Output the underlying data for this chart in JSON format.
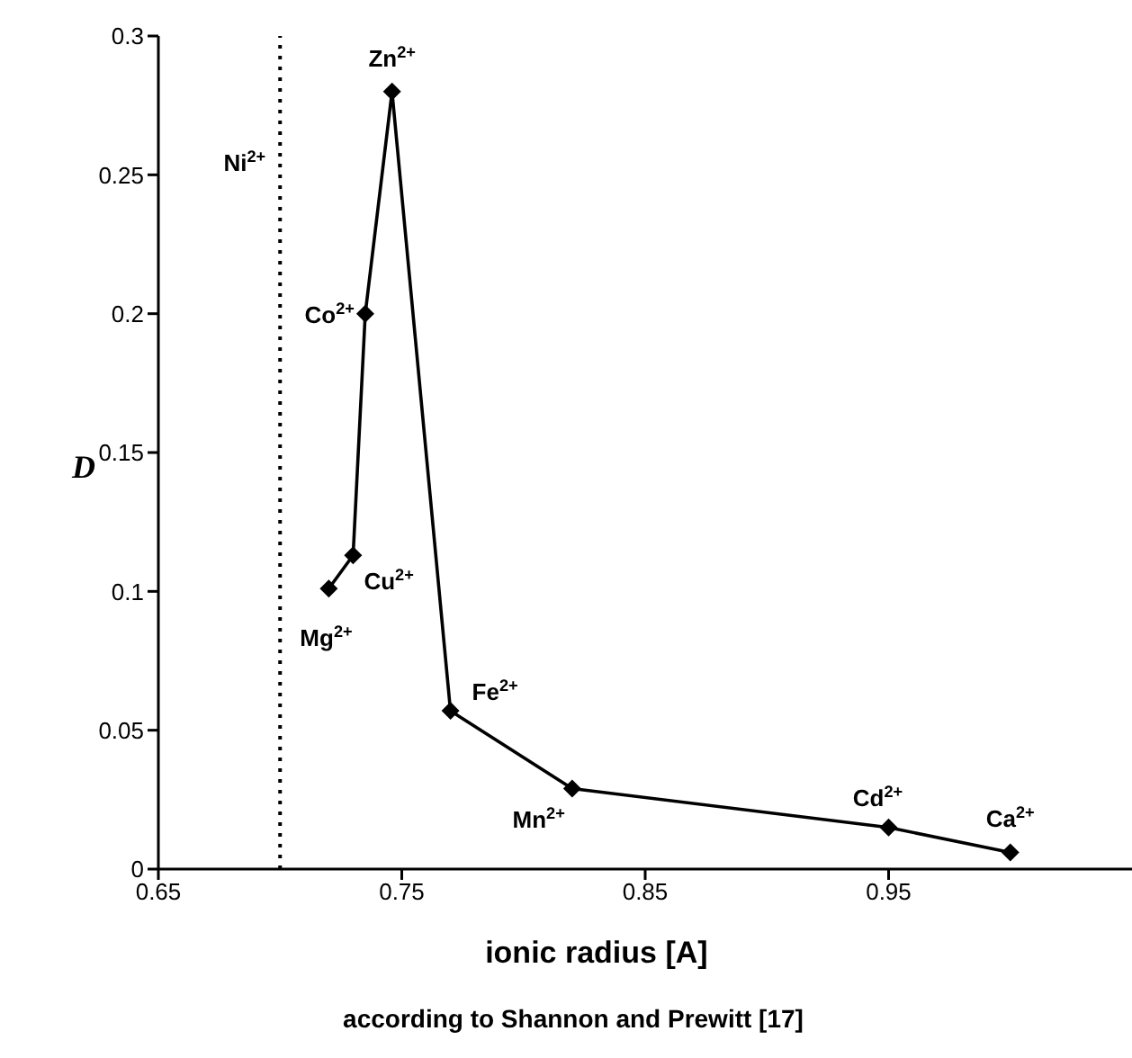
{
  "chart_data": {
    "type": "line",
    "xlabel": "ionic radius [A]",
    "ylabel": "D",
    "x": [
      0.72,
      0.73,
      0.735,
      0.746,
      0.77,
      0.82,
      0.95,
      1.0
    ],
    "series": [
      {
        "color": "#000000",
        "values": [
          0.101,
          0.113,
          0.2,
          0.28,
          0.057,
          0.029,
          0.015,
          0.006
        ]
      }
    ],
    "xlim": [
      0.65,
      1.05
    ],
    "xticks": [
      0.65,
      0.75,
      0.85,
      0.95
    ],
    "ylim": [
      0,
      0.3
    ],
    "yticks": [
      0,
      0.05,
      0.1,
      0.15,
      0.2,
      0.25,
      0.3
    ],
    "grid": false,
    "legend": false,
    "marker": "diamond",
    "line_style": "solid",
    "ref_lines": [
      {
        "axis": "x",
        "value": 0.7,
        "label": "Ni$^{2+}$",
        "line_style": "dotted",
        "color": "#000000"
      }
    ],
    "annotations": [
      {
        "text": "Mg$^{2+}$",
        "x": 0.72,
        "y": 0.101
      },
      {
        "text": "Cu$^{2+}$",
        "x": 0.73,
        "y": 0.113
      },
      {
        "text": "Co$^{2+}$",
        "x": 0.735,
        "y": 0.2
      },
      {
        "text": "Zn$^{2+}$",
        "x": 0.746,
        "y": 0.28
      },
      {
        "text": "Fe$^{2+}$",
        "x": 0.77,
        "y": 0.057
      },
      {
        "text": "Mn$^{2+}$",
        "x": 0.82,
        "y": 0.029
      },
      {
        "text": "Cd$^{2+}$",
        "x": 0.95,
        "y": 0.015
      },
      {
        "text": "Ca$^{2+}$",
        "x": 1.0,
        "y": 0.006
      },
      "according to Shannon and Prewitt [17]"
    ]
  }
}
